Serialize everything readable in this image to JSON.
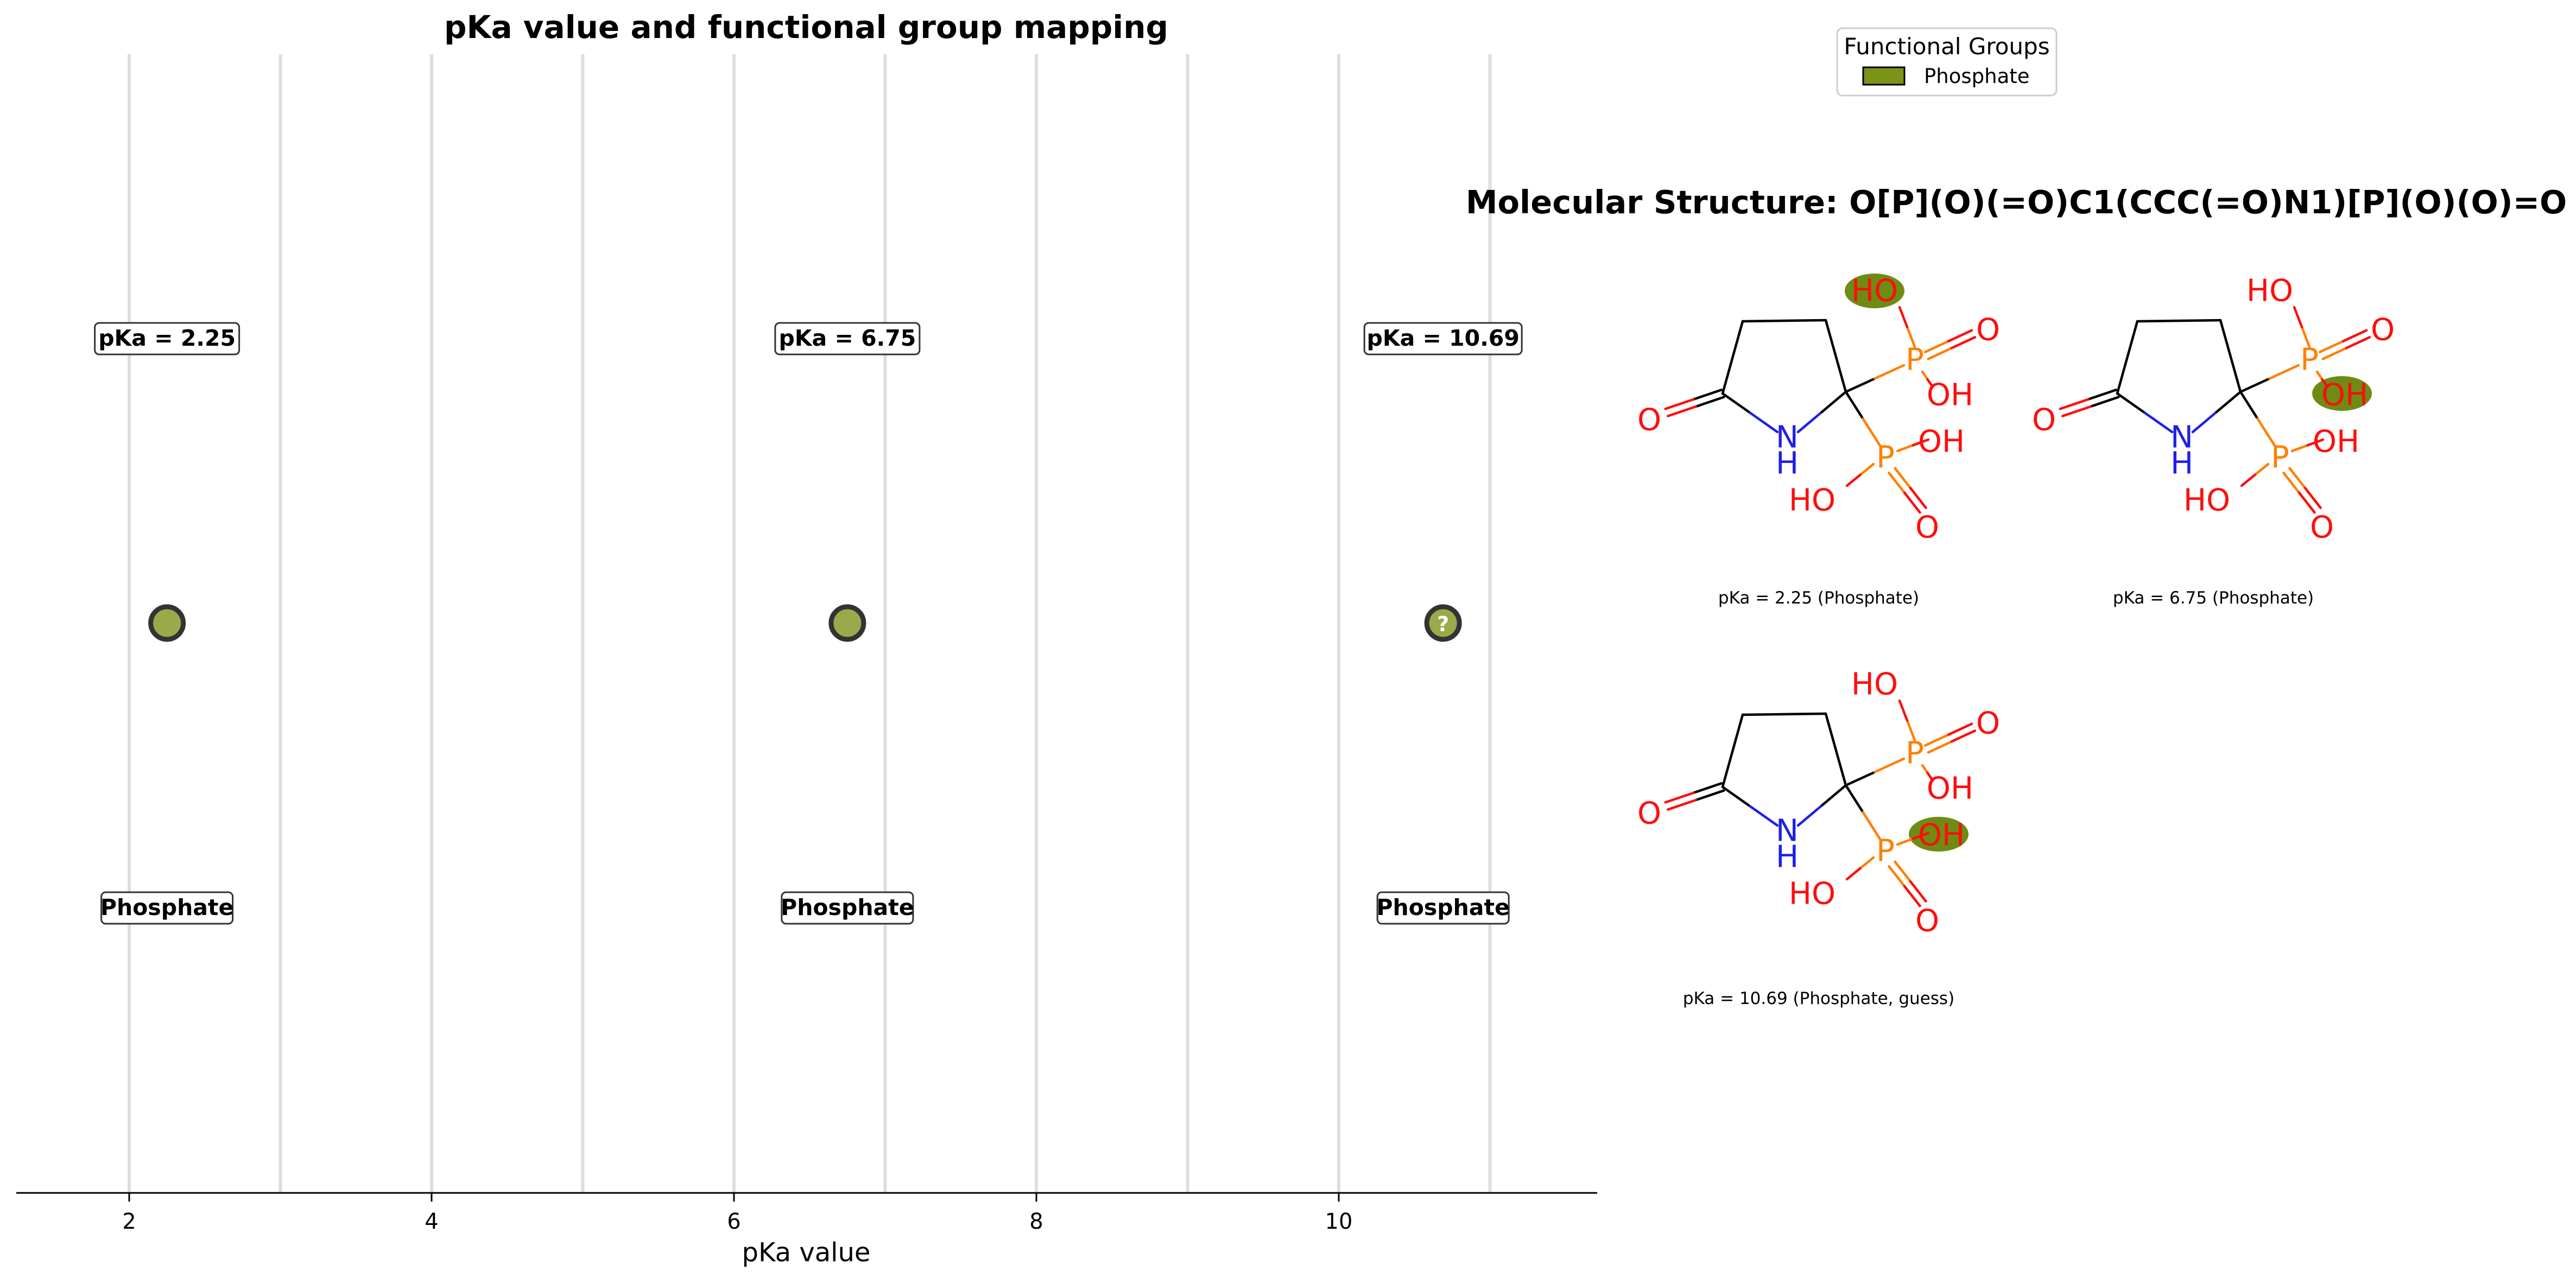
{
  "chart_data": {
    "type": "scatter",
    "title": "pKa value and functional group mapping",
    "xlabel": "pKa value",
    "xlim": [
      1.3,
      11.6
    ],
    "xticks": [
      2,
      4,
      6,
      8,
      10
    ],
    "grid": "vertical",
    "points": [
      {
        "x": 2.25,
        "label": "pKa = 2.25",
        "group": "Phosphate",
        "guess": false
      },
      {
        "x": 6.75,
        "label": "pKa = 6.75",
        "group": "Phosphate",
        "guess": false
      },
      {
        "x": 10.69,
        "label": "pKa = 10.69",
        "group": "Phosphate",
        "guess": true
      }
    ],
    "guess_marker": "?",
    "point_color": "#9aaa4a",
    "legend": {
      "title": "Functional Groups",
      "entries": [
        {
          "name": "Phosphate",
          "color": "#7a9418"
        }
      ],
      "placement": "top-right"
    }
  },
  "structure_panel": {
    "title": "Molecular Structure: O[P](O)(=O)C1(CCC(=O)N1)[P](O)(O)=O",
    "highlight_color": "#6e8c13",
    "atom_labels": {
      "HO": "HO",
      "OH": "OH",
      "O": "O",
      "P": "P",
      "N": "N",
      "H": "H"
    },
    "molecules": [
      {
        "caption": "pKa = 2.25 (Phosphate)",
        "highlight": "upper-HO"
      },
      {
        "caption": "pKa = 6.75 (Phosphate)",
        "highlight": "upper-OH"
      },
      {
        "caption": "pKa = 10.69 (Phosphate, guess)",
        "highlight": "lower-OH"
      }
    ]
  }
}
